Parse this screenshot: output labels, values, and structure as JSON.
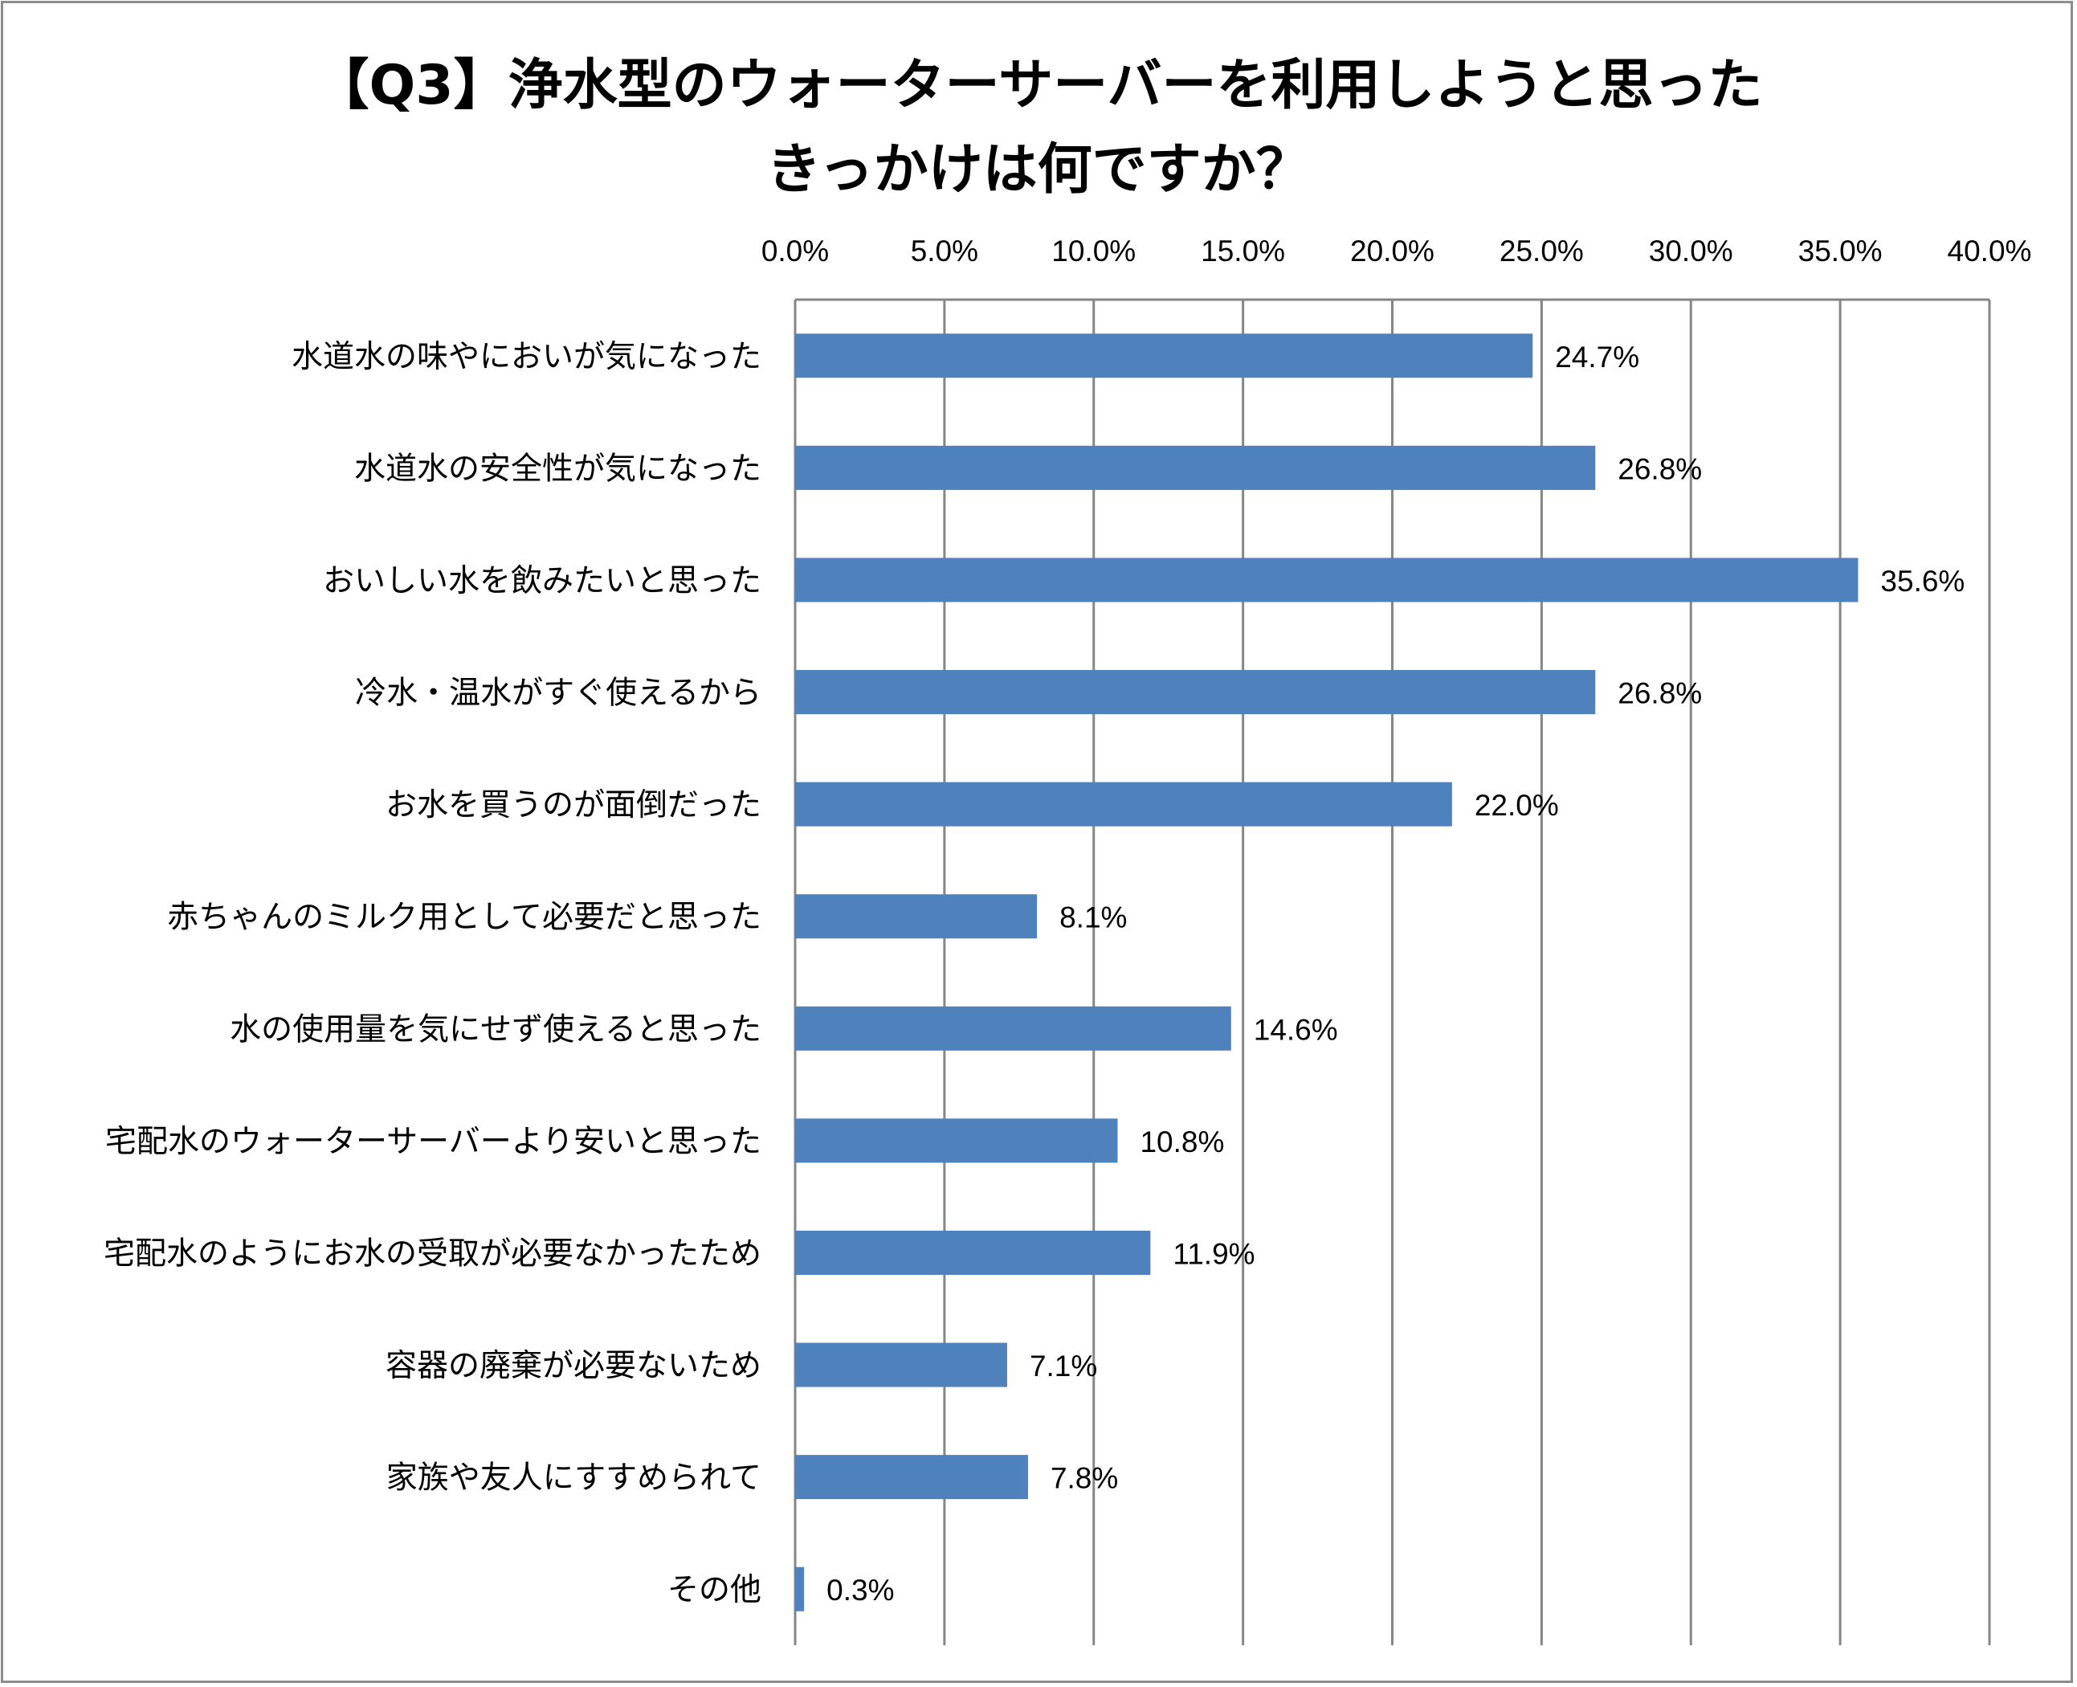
{
  "chart_data": {
    "type": "bar",
    "orientation": "horizontal",
    "title_line1": "【Q3】浄水型のウォーターサーバーを利用しようと思った",
    "title_line2": "きっかけは何ですか？",
    "xlabel": "",
    "ylabel": "",
    "xlim": [
      0,
      40
    ],
    "x_ticks": [
      "0.0%",
      "5.0%",
      "10.0%",
      "15.0%",
      "20.0%",
      "25.0%",
      "30.0%",
      "35.0%",
      "40.0%"
    ],
    "x_axis_position": "top",
    "grid": true,
    "bar_color": "#4f81bd",
    "categories": [
      "水道水の味やにおいが気になった",
      "水道水の安全性が気になった",
      "おいしい水を飲みたいと思った",
      "冷水・温水がすぐ使えるから",
      "お水を買うのが面倒だった",
      "赤ちゃんのミルク用として必要だと思った",
      "水の使用量を気にせず使えると思った",
      "宅配水のウォーターサーバーより安いと思った",
      "宅配水のようにお水の受取が必要なかったため",
      "容器の廃棄が必要ないため",
      "家族や友人にすすめられて",
      "その他"
    ],
    "values": [
      24.7,
      26.8,
      35.6,
      26.8,
      22.0,
      8.1,
      14.6,
      10.8,
      11.9,
      7.1,
      7.8,
      0.3
    ],
    "data_labels": [
      "24.7%",
      "26.8%",
      "35.6%",
      "26.8%",
      "22.0%",
      "8.1%",
      "14.6%",
      "10.8%",
      "11.9%",
      "7.1%",
      "7.8%",
      "0.3%"
    ]
  }
}
